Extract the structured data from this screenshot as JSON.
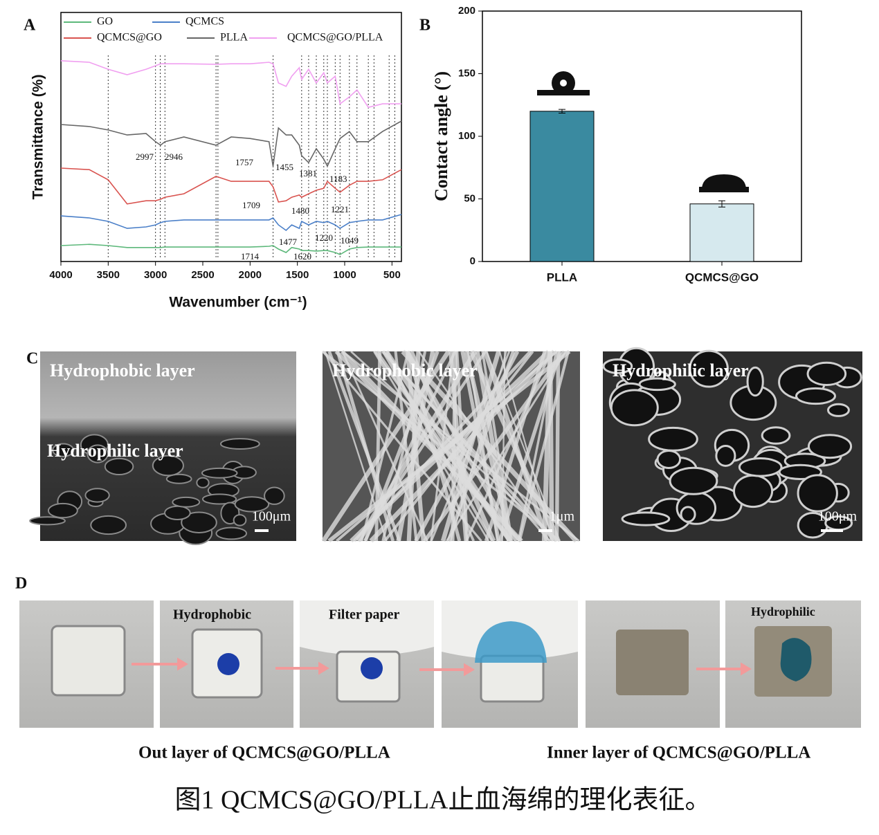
{
  "chart_data": [
    {
      "type": "line",
      "panel": "A",
      "xlabel": "Wavenumber (cm⁻¹)",
      "ylabel": "Transmittance (%)",
      "x": [
        4000,
        3700,
        3500,
        3300,
        3100,
        3000,
        2946,
        2900,
        2700,
        2360,
        2200,
        2000,
        1800,
        1757,
        1700,
        1620,
        1560,
        1480,
        1455,
        1381,
        1300,
        1221,
        1183,
        1100,
        1049,
        950,
        870,
        750,
        600,
        400
      ],
      "xlim": [
        4000,
        400
      ],
      "ylim": [
        0,
        100
      ],
      "xticks": [
        4000,
        3500,
        3000,
        2500,
        2000,
        1500,
        1000,
        500
      ],
      "series": [
        {
          "name": "GO",
          "color": "#5cb87a",
          "values": [
            6.4,
            6.9,
            6.4,
            5.6,
            5.6,
            5.6,
            5.6,
            5.8,
            5.8,
            5.8,
            5.8,
            5.8,
            6.1,
            6.4,
            5,
            3.6,
            5.6,
            5,
            4.4,
            4.4,
            4.2,
            4.4,
            4.4,
            3.6,
            2.8,
            5,
            5.6,
            5.8,
            5.8,
            5.8
          ]
        },
        {
          "name": "QCMCS",
          "color": "#4a7fc8",
          "values": [
            18.3,
            17.5,
            16.1,
            13.3,
            13.9,
            14.7,
            15.6,
            16.1,
            16.7,
            16.7,
            16.7,
            16.7,
            16.7,
            17.5,
            14.7,
            12.5,
            14.7,
            13.3,
            16.1,
            14.7,
            16.1,
            15.6,
            16.1,
            14.7,
            13.3,
            15.6,
            16.1,
            16.7,
            16.7,
            18.9
          ]
        },
        {
          "name": "QCMCS@GO",
          "color": "#d9534f",
          "values": [
            37.5,
            36.9,
            32.8,
            23.1,
            24.4,
            24.4,
            25,
            25.8,
            27.2,
            34.2,
            32.2,
            32.2,
            32.2,
            30,
            23.9,
            24.4,
            25.8,
            26.7,
            25.8,
            27.2,
            28.6,
            29.4,
            32.2,
            29.4,
            27.8,
            30.6,
            32.2,
            32.2,
            32.8,
            36.9
          ]
        },
        {
          "name": "PLLA",
          "color": "#666666",
          "values": [
            55,
            54.2,
            52.8,
            50.8,
            51.4,
            48.1,
            46.7,
            48.1,
            50,
            46.7,
            50,
            49.4,
            48.1,
            38.3,
            53.6,
            50.8,
            50.8,
            46.7,
            42.5,
            39.7,
            45.3,
            41.1,
            38.3,
            45.3,
            49.4,
            52.2,
            48.1,
            48.1,
            52.2,
            56.4
          ]
        },
        {
          "name": "QCMCS@GO/PLLA",
          "color": "#f09ff0",
          "values": [
            80.6,
            80,
            77.2,
            75,
            77.2,
            78.6,
            79.4,
            79.4,
            79.4,
            79.2,
            79.4,
            79.4,
            80,
            79.4,
            71.7,
            70.3,
            74.4,
            77.8,
            73.1,
            77.2,
            71.7,
            75.8,
            71.7,
            74.4,
            63.3,
            66.1,
            68.9,
            61.9,
            63.3,
            63.3
          ]
        }
      ],
      "peak_labels": [
        2997,
        2946,
        1757,
        1455,
        1381,
        1183,
        1709,
        1480,
        1221,
        1477,
        1220,
        1049,
        1714,
        1620
      ],
      "dotted_lines": [
        3500,
        3000,
        2950,
        2900,
        2360,
        2340,
        1757,
        1455,
        1381,
        1300,
        1221,
        1183,
        1100,
        1049,
        950,
        870,
        750,
        690,
        530,
        470
      ]
    },
    {
      "type": "bar",
      "panel": "B",
      "ylabel": "Contact angle (°)",
      "categories": [
        "PLLA",
        "QCMCS@GO"
      ],
      "values": [
        120,
        46
      ],
      "errors": [
        1.5,
        2.5
      ],
      "colors": [
        "#3a8aa0",
        "#d6e9ee"
      ],
      "ylim": [
        0,
        200
      ],
      "yticks": [
        0,
        50,
        100,
        150,
        200
      ]
    }
  ],
  "panel_c": {
    "letter": "C",
    "images": [
      {
        "labels": [
          "Hydrophobic layer",
          "Hydrophilic layer"
        ],
        "scale": "100μm"
      },
      {
        "labels": [
          "Hydrophobic layer"
        ],
        "scale": "1μm"
      },
      {
        "labels": [
          "Hydrophilic layer"
        ],
        "scale": "100μm"
      }
    ]
  },
  "panel_d": {
    "letter": "D",
    "photo_labels": [
      "Hydrophobic",
      "Filter paper",
      "Hydrophilic"
    ],
    "captions": [
      "Out layer of QCMCS@GO/PLLA",
      "Inner layer of QCMCS@GO/PLLA"
    ]
  },
  "caption": "图1 QCMCS@GO/PLLA止血海绵的理化表征。"
}
